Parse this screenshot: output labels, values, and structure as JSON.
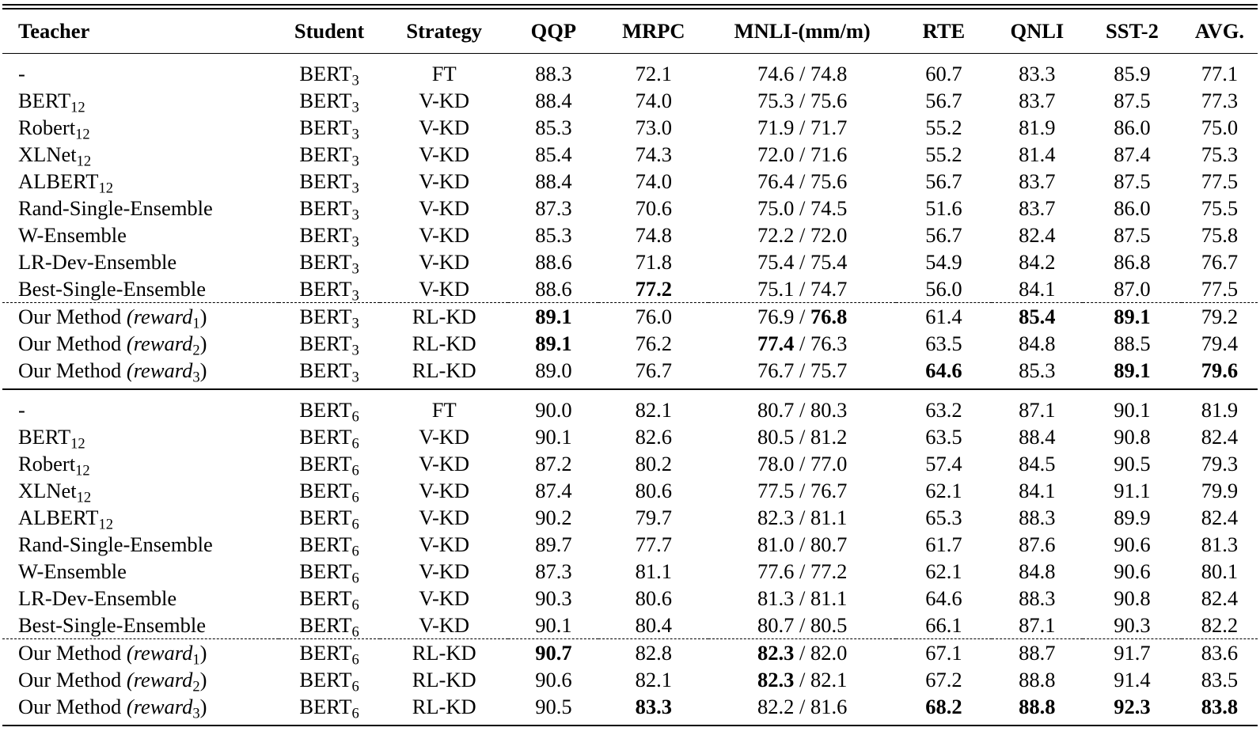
{
  "headers": {
    "teacher": "Teacher",
    "student": "Student",
    "strategy": "Strategy",
    "qqp": "QQP",
    "mrpc": "MRPC",
    "mnli": "MNLI-(mm/m)",
    "rte": "RTE",
    "qnli": "QNLI",
    "sst2": "SST-2",
    "avg": "AVG."
  },
  "blocks": [
    {
      "student_base": "BERT",
      "student_sub": "3",
      "rows": [
        {
          "t": "-",
          "ts": "",
          "tr": "",
          "tr_sub": "",
          "tr_end": "",
          "strategy": "FT",
          "qqp": "88.3",
          "mrpc": "72.1",
          "mnli_a": "74.6",
          "mnli_b": "74.8",
          "rte": "60.7",
          "qnli": "83.3",
          "sst2": "85.9",
          "avg": "77.1",
          "bold": []
        },
        {
          "t": "BERT",
          "ts": "12",
          "tr": "",
          "tr_sub": "",
          "tr_end": "",
          "strategy": "V-KD",
          "qqp": "88.4",
          "mrpc": "74.0",
          "mnli_a": "75.3",
          "mnli_b": "75.6",
          "rte": "56.7",
          "qnli": "83.7",
          "sst2": "87.5",
          "avg": "77.3",
          "bold": []
        },
        {
          "t": "Robert",
          "ts": "12",
          "tr": "",
          "tr_sub": "",
          "tr_end": "",
          "strategy": "V-KD",
          "qqp": "85.3",
          "mrpc": "73.0",
          "mnli_a": "71.9",
          "mnli_b": "71.7",
          "rte": "55.2",
          "qnli": "81.9",
          "sst2": "86.0",
          "avg": "75.0",
          "bold": []
        },
        {
          "t": "XLNet",
          "ts": "12",
          "tr": "",
          "tr_sub": "",
          "tr_end": "",
          "strategy": "V-KD",
          "qqp": "85.4",
          "mrpc": "74.3",
          "mnli_a": "72.0",
          "mnli_b": "71.6",
          "rte": "55.2",
          "qnli": "81.4",
          "sst2": "87.4",
          "avg": "75.3",
          "bold": []
        },
        {
          "t": "ALBERT",
          "ts": "12",
          "tr": "",
          "tr_sub": "",
          "tr_end": "",
          "strategy": "V-KD",
          "qqp": "88.4",
          "mrpc": "74.0",
          "mnli_a": "76.4",
          "mnli_b": "75.6",
          "rte": "56.7",
          "qnli": "83.7",
          "sst2": "87.5",
          "avg": "77.5",
          "bold": []
        },
        {
          "t": "Rand-Single-Ensemble",
          "ts": "",
          "tr": "",
          "tr_sub": "",
          "tr_end": "",
          "strategy": "V-KD",
          "qqp": "87.3",
          "mrpc": "70.6",
          "mnli_a": "75.0",
          "mnli_b": "74.5",
          "rte": "51.6",
          "qnli": "83.7",
          "sst2": "86.0",
          "avg": "75.5",
          "bold": []
        },
        {
          "t": "W-Ensemble",
          "ts": "",
          "tr": "",
          "tr_sub": "",
          "tr_end": "",
          "strategy": "V-KD",
          "qqp": "85.3",
          "mrpc": "74.8",
          "mnli_a": "72.2",
          "mnli_b": "72.0",
          "rte": "56.7",
          "qnli": "82.4",
          "sst2": "87.5",
          "avg": "75.8",
          "bold": []
        },
        {
          "t": "LR-Dev-Ensemble",
          "ts": "",
          "tr": "",
          "tr_sub": "",
          "tr_end": "",
          "strategy": "V-KD",
          "qqp": "88.6",
          "mrpc": "71.8",
          "mnli_a": "75.4",
          "mnli_b": "75.4",
          "rte": "54.9",
          "qnli": "84.2",
          "sst2": "86.8",
          "avg": "76.7",
          "bold": []
        },
        {
          "t": "Best-Single-Ensemble",
          "ts": "",
          "tr": "",
          "tr_sub": "",
          "tr_end": "",
          "strategy": "V-KD",
          "qqp": "88.6",
          "mrpc": "77.2",
          "mnli_a": "75.1",
          "mnli_b": "74.7",
          "rte": "56.0",
          "qnli": "84.1",
          "sst2": "87.0",
          "avg": "77.5",
          "bold": [
            "mrpc"
          ]
        },
        {
          "t": "Our Method ",
          "ts": "",
          "tr": "(reward",
          "tr_sub": "1",
          "tr_end": ")",
          "strategy": "RL-KD",
          "qqp": "89.1",
          "mrpc": "76.0",
          "mnli_a": "76.9",
          "mnli_b": "76.8",
          "rte": "61.4",
          "qnli": "85.4",
          "sst2": "89.1",
          "avg": "79.2",
          "bold": [
            "qqp",
            "mnli_b",
            "qnli",
            "sst2"
          ],
          "dash": true
        },
        {
          "t": "Our Method ",
          "ts": "",
          "tr": "(reward",
          "tr_sub": "2",
          "tr_end": ")",
          "strategy": "RL-KD",
          "qqp": "89.1",
          "mrpc": "76.2",
          "mnli_a": "77.4",
          "mnli_b": "76.3",
          "rte": "63.5",
          "qnli": "84.8",
          "sst2": "88.5",
          "avg": "79.4",
          "bold": [
            "qqp",
            "mnli_a"
          ]
        },
        {
          "t": "Our Method ",
          "ts": "",
          "tr": "(reward",
          "tr_sub": "3",
          "tr_end": ")",
          "strategy": "RL-KD",
          "qqp": "89.0",
          "mrpc": "76.7",
          "mnli_a": "76.7",
          "mnli_b": "75.7",
          "rte": "64.6",
          "qnli": "85.3",
          "sst2": "89.1",
          "avg": "79.6",
          "bold": [
            "rte",
            "sst2",
            "avg"
          ]
        }
      ]
    },
    {
      "student_base": "BERT",
      "student_sub": "6",
      "rows": [
        {
          "t": "-",
          "ts": "",
          "tr": "",
          "tr_sub": "",
          "tr_end": "",
          "strategy": "FT",
          "qqp": "90.0",
          "mrpc": "82.1",
          "mnli_a": "80.7",
          "mnli_b": "80.3",
          "rte": "63.2",
          "qnli": "87.1",
          "sst2": "90.1",
          "avg": "81.9",
          "bold": []
        },
        {
          "t": "BERT",
          "ts": "12",
          "tr": "",
          "tr_sub": "",
          "tr_end": "",
          "strategy": "V-KD",
          "qqp": "90.1",
          "mrpc": "82.6",
          "mnli_a": "80.5",
          "mnli_b": "81.2",
          "rte": "63.5",
          "qnli": "88.4",
          "sst2": "90.8",
          "avg": "82.4",
          "bold": []
        },
        {
          "t": "Robert",
          "ts": "12",
          "tr": "",
          "tr_sub": "",
          "tr_end": "",
          "strategy": "V-KD",
          "qqp": "87.2",
          "mrpc": "80.2",
          "mnli_a": "78.0",
          "mnli_b": "77.0",
          "rte": "57.4",
          "qnli": "84.5",
          "sst2": "90.5",
          "avg": "79.3",
          "bold": []
        },
        {
          "t": "XLNet",
          "ts": "12",
          "tr": "",
          "tr_sub": "",
          "tr_end": "",
          "strategy": "V-KD",
          "qqp": "87.4",
          "mrpc": "80.6",
          "mnli_a": "77.5",
          "mnli_b": "76.7",
          "rte": "62.1",
          "qnli": "84.1",
          "sst2": "91.1",
          "avg": "79.9",
          "bold": []
        },
        {
          "t": "ALBERT",
          "ts": "12",
          "tr": "",
          "tr_sub": "",
          "tr_end": "",
          "strategy": "V-KD",
          "qqp": "90.2",
          "mrpc": "79.7",
          "mnli_a": "82.3",
          "mnli_b": "81.1",
          "rte": "65.3",
          "qnli": "88.3",
          "sst2": "89.9",
          "avg": "82.4",
          "bold": []
        },
        {
          "t": "Rand-Single-Ensemble",
          "ts": "",
          "tr": "",
          "tr_sub": "",
          "tr_end": "",
          "strategy": "V-KD",
          "qqp": "89.7",
          "mrpc": "77.7",
          "mnli_a": "81.0",
          "mnli_b": "80.7",
          "rte": "61.7",
          "qnli": "87.6",
          "sst2": "90.6",
          "avg": "81.3",
          "bold": []
        },
        {
          "t": "W-Ensemble",
          "ts": "",
          "tr": "",
          "tr_sub": "",
          "tr_end": "",
          "strategy": "V-KD",
          "qqp": "87.3",
          "mrpc": "81.1",
          "mnli_a": "77.6",
          "mnli_b": "77.2",
          "rte": "62.1",
          "qnli": "84.8",
          "sst2": "90.6",
          "avg": "80.1",
          "bold": []
        },
        {
          "t": "LR-Dev-Ensemble",
          "ts": "",
          "tr": "",
          "tr_sub": "",
          "tr_end": "",
          "strategy": "V-KD",
          "qqp": "90.3",
          "mrpc": "80.6",
          "mnli_a": "81.3",
          "mnli_b": "81.1",
          "rte": "64.6",
          "qnli": "88.3",
          "sst2": "90.8",
          "avg": "82.4",
          "bold": []
        },
        {
          "t": "Best-Single-Ensemble",
          "ts": "",
          "tr": "",
          "tr_sub": "",
          "tr_end": "",
          "strategy": "V-KD",
          "qqp": "90.1",
          "mrpc": "80.4",
          "mnli_a": "80.7",
          "mnli_b": "80.5",
          "rte": "66.1",
          "qnli": "87.1",
          "sst2": "90.3",
          "avg": "82.2",
          "bold": []
        },
        {
          "t": "Our Method ",
          "ts": "",
          "tr": "(reward",
          "tr_sub": "1",
          "tr_end": ")",
          "strategy": "RL-KD",
          "qqp": "90.7",
          "mrpc": "82.8",
          "mnli_a": "82.3",
          "mnli_b": "82.0",
          "rte": "67.1",
          "qnli": "88.7",
          "sst2": "91.7",
          "avg": "83.6",
          "bold": [
            "qqp",
            "mnli_a"
          ],
          "dash": true
        },
        {
          "t": "Our Method ",
          "ts": "",
          "tr": "(reward",
          "tr_sub": "2",
          "tr_end": ")",
          "strategy": "RL-KD",
          "qqp": "90.6",
          "mrpc": "82.1",
          "mnli_a": "82.3",
          "mnli_b": "82.1",
          "rte": "67.2",
          "qnli": "88.8",
          "sst2": "91.4",
          "avg": "83.5",
          "bold": [
            "mnli_a"
          ]
        },
        {
          "t": "Our Method ",
          "ts": "",
          "tr": "(reward",
          "tr_sub": "3",
          "tr_end": ")",
          "strategy": "RL-KD",
          "qqp": "90.5",
          "mrpc": "83.3",
          "mnli_a": "82.2",
          "mnli_b": "81.6",
          "rte": "68.2",
          "qnli": "88.8",
          "sst2": "92.3",
          "avg": "83.8",
          "bold": [
            "mrpc",
            "rte",
            "qnli",
            "sst2",
            "avg"
          ]
        }
      ]
    }
  ],
  "mnli_separator": " / "
}
